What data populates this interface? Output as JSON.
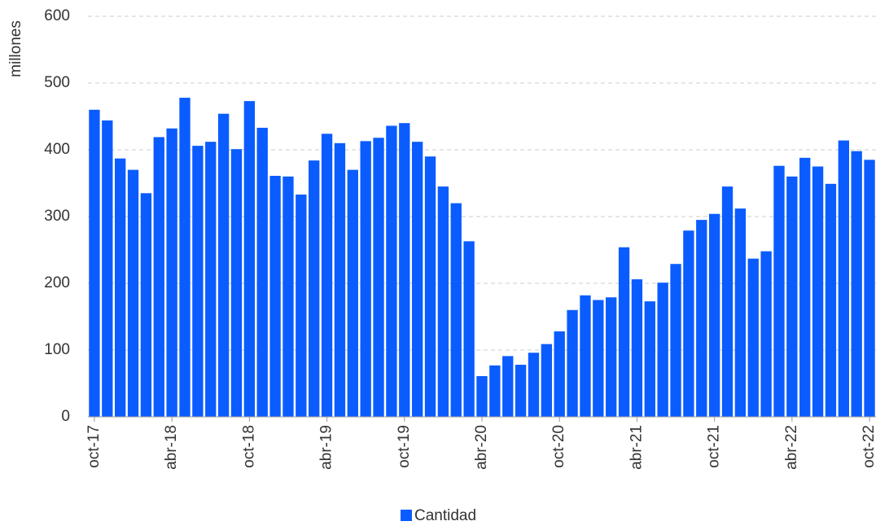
{
  "chart_data": {
    "type": "bar",
    "y_label": "millones",
    "categories": [
      "oct-17",
      null,
      null,
      null,
      null,
      null,
      "abr-18",
      null,
      null,
      null,
      null,
      null,
      "oct-18",
      null,
      null,
      null,
      null,
      null,
      "abr-19",
      null,
      null,
      null,
      null,
      null,
      "oct-19",
      null,
      null,
      null,
      null,
      null,
      "abr-20",
      null,
      null,
      null,
      null,
      null,
      "oct-20",
      null,
      null,
      null,
      null,
      null,
      "abr-21",
      null,
      null,
      null,
      null,
      null,
      "oct-21",
      null,
      null,
      null,
      null,
      null,
      "abr-22",
      null,
      null,
      null,
      null,
      null,
      "oct-22"
    ],
    "series": [
      {
        "name": "Cantidad",
        "color": "#0a5cff",
        "values": [
          460,
          444,
          387,
          370,
          335,
          419,
          432,
          478,
          406,
          412,
          454,
          401,
          473,
          433,
          361,
          360,
          333,
          384,
          424,
          410,
          370,
          413,
          418,
          436,
          440,
          412,
          390,
          345,
          320,
          263,
          61,
          77,
          91,
          78,
          96,
          109,
          128,
          160,
          182,
          175,
          179,
          254,
          206,
          173,
          201,
          229,
          279,
          295,
          304,
          345,
          312,
          237,
          248,
          376,
          360,
          388,
          375,
          349,
          414,
          398,
          385
        ]
      }
    ],
    "ylim": [
      0,
      600
    ],
    "yticks": [
      0,
      100,
      200,
      300,
      400,
      500,
      600
    ],
    "grid": true,
    "legend": "bottom"
  }
}
